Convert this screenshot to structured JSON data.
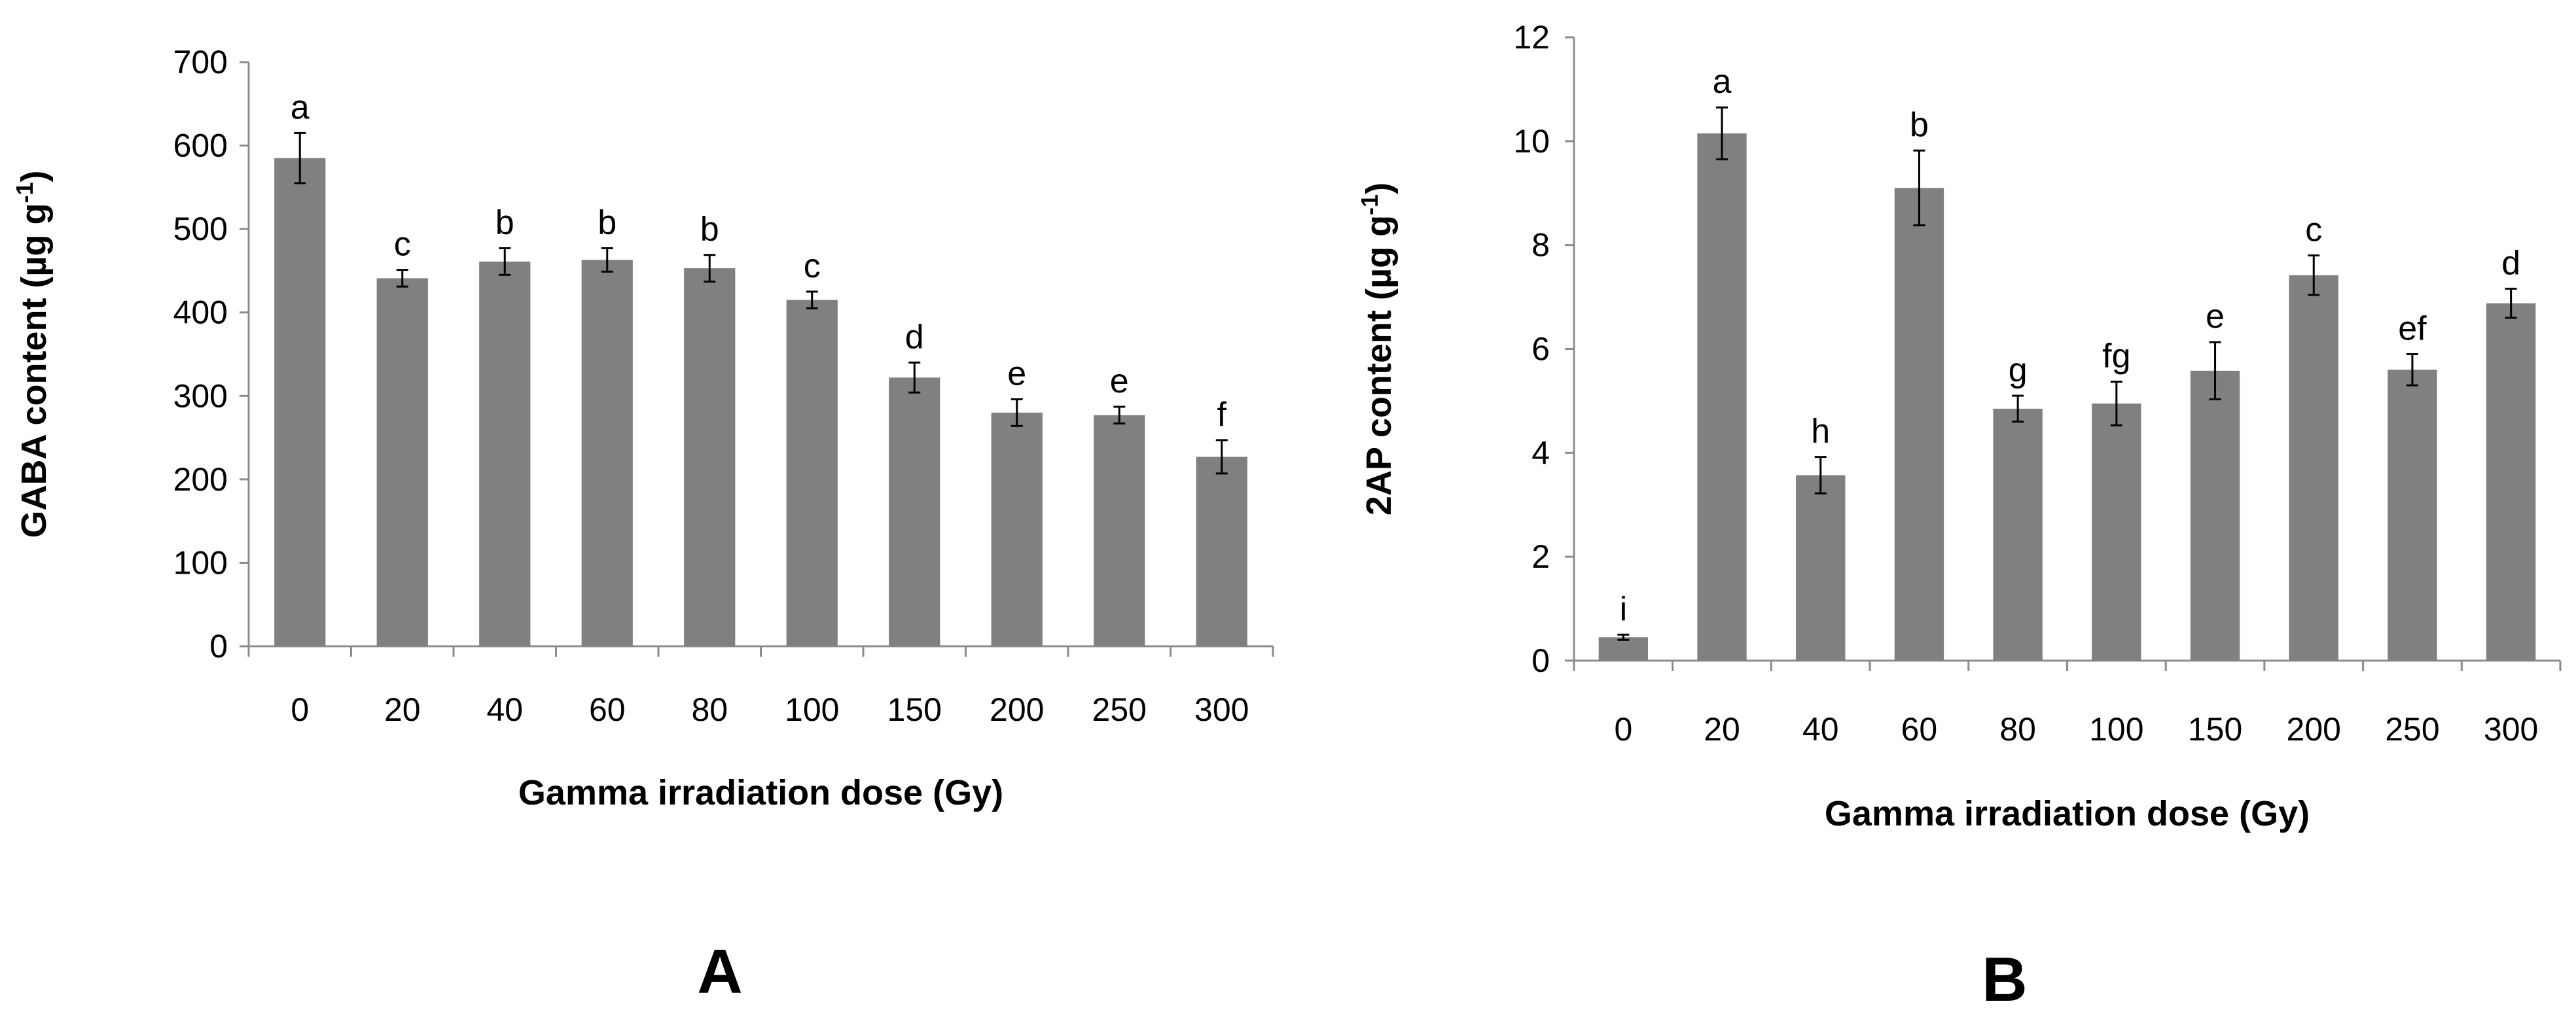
{
  "style": {
    "bar_color": "#808080",
    "axis_color": "#8c8c8c",
    "text_color": "#000000"
  },
  "chart_data": [
    {
      "type": "bar",
      "panel_label": "A",
      "categories": [
        "0",
        "20",
        "40",
        "60",
        "80",
        "100",
        "150",
        "200",
        "250",
        "300"
      ],
      "values": [
        585,
        441,
        461,
        463,
        453,
        415,
        322,
        280,
        277,
        227
      ],
      "errors": [
        30,
        10,
        16,
        14,
        16,
        10,
        18,
        16,
        10,
        20
      ],
      "significance": [
        "a",
        "c",
        "b",
        "b",
        "b",
        "c",
        "d",
        "e",
        "e",
        "f"
      ],
      "xlabel": "Gamma irradiation dose (Gy)",
      "ylabel": {
        "main": "GABA content (µg g",
        "sup": "-1",
        "end": ")"
      },
      "ylim": [
        0,
        700
      ],
      "yticks": [
        0,
        100,
        200,
        300,
        400,
        500,
        600,
        700
      ],
      "grid": false
    },
    {
      "type": "bar",
      "panel_label": "B",
      "categories": [
        "0",
        "20",
        "40",
        "60",
        "80",
        "100",
        "150",
        "200",
        "250",
        "300"
      ],
      "values": [
        0.45,
        10.15,
        3.57,
        9.1,
        4.85,
        4.95,
        5.58,
        7.42,
        5.6,
        6.88
      ],
      "errors": [
        0.05,
        0.5,
        0.35,
        0.72,
        0.25,
        0.42,
        0.55,
        0.38,
        0.3,
        0.28
      ],
      "significance": [
        "i",
        "a",
        "h",
        "b",
        "g",
        "fg",
        "e",
        "c",
        "ef",
        "d"
      ],
      "xlabel": "Gamma irradiation dose (Gy)",
      "ylabel": {
        "main": "2AP content (µg g",
        "sup": "-1",
        "end": ")"
      },
      "ylim": [
        0,
        12
      ],
      "yticks": [
        0,
        2,
        4,
        6,
        8,
        10,
        12
      ],
      "grid": false
    }
  ]
}
